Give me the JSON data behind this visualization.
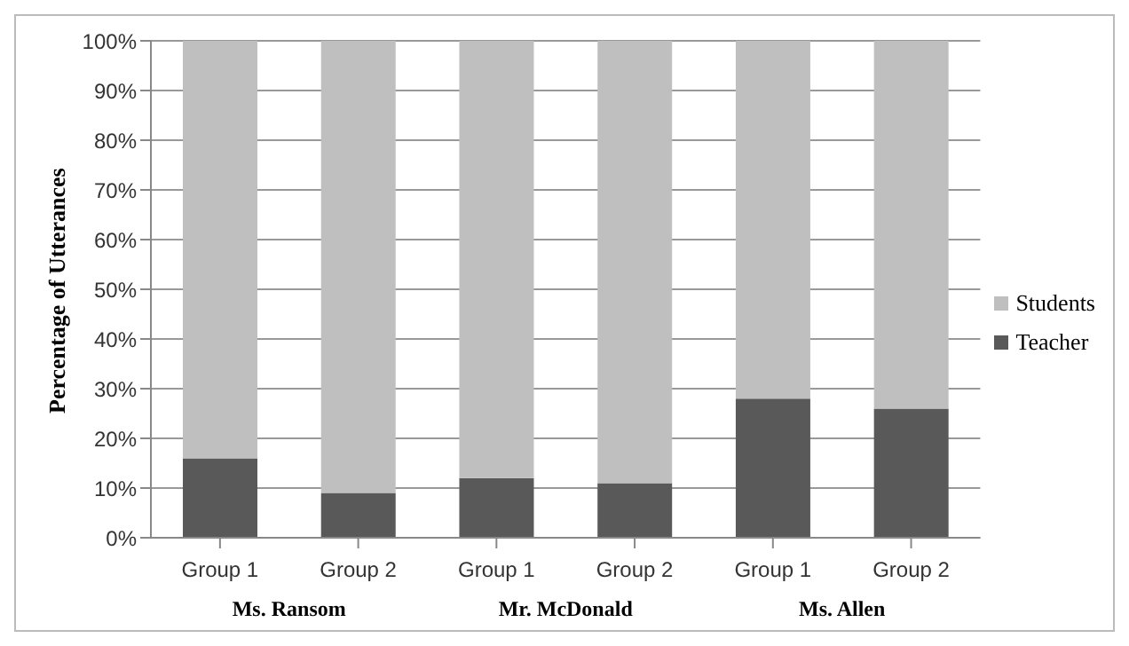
{
  "chart_data": {
    "type": "bar",
    "stacked": true,
    "ylabel": "Percentage of Utterances",
    "categories": [
      "Group 1",
      "Group 2",
      "Group 1",
      "Group 2",
      "Group 1",
      "Group 2"
    ],
    "series": [
      {
        "name": "Teacher",
        "color": "#595959",
        "values": [
          16,
          9,
          12,
          11,
          28,
          26
        ]
      },
      {
        "name": "Students",
        "color": "#bfbfbf",
        "values": [
          84,
          91,
          88,
          89,
          72,
          74
        ]
      }
    ],
    "ylim": [
      0,
      100
    ],
    "yticks": [
      {
        "value": 0,
        "label": "0%"
      },
      {
        "value": 10,
        "label": "10%"
      },
      {
        "value": 20,
        "label": "20%"
      },
      {
        "value": 30,
        "label": "30%"
      },
      {
        "value": 40,
        "label": "40%"
      },
      {
        "value": 50,
        "label": "50%"
      },
      {
        "value": 60,
        "label": "60%"
      },
      {
        "value": 70,
        "label": "70%"
      },
      {
        "value": 80,
        "label": "80%"
      },
      {
        "value": 90,
        "label": "90%"
      },
      {
        "value": 100,
        "label": "100%"
      }
    ],
    "grid": "y",
    "legend": "right",
    "annotations": [
      "Ms. Ransom",
      "Mr. McDonald",
      "Ms. Allen"
    ]
  }
}
